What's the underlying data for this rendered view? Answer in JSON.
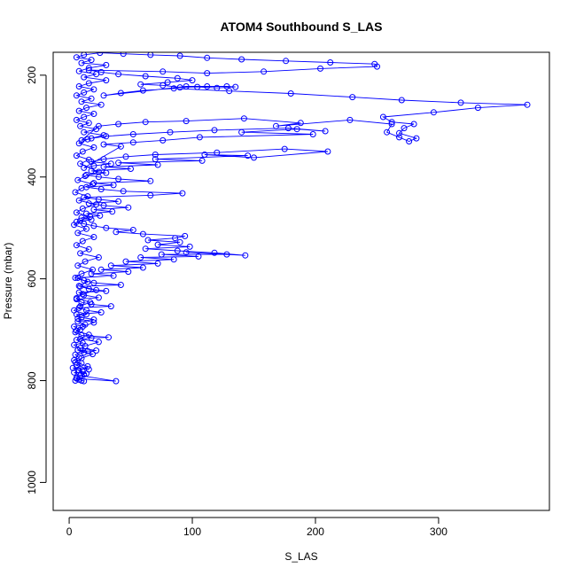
{
  "chart_data": {
    "type": "scatter",
    "title": "ATOM4 Southbound S_LAS",
    "xlabel": "S_LAS",
    "ylabel": "Pressure (mbar)",
    "xlim": [
      -13,
      390
    ],
    "ylim": [
      1055,
      155
    ],
    "y_reversed": true,
    "x_ticks": [
      0,
      100,
      200,
      300
    ],
    "y_ticks": [
      200,
      400,
      600,
      800,
      1000
    ],
    "grid": false,
    "legend": "none",
    "series": [
      {
        "marker": "open-circle",
        "line": "connected",
        "color": "#0000ff",
        "points": [
          [
            5,
            800
          ],
          [
            8,
            798
          ],
          [
            12,
            801
          ],
          [
            6,
            796
          ],
          [
            38,
            801
          ],
          [
            9,
            790
          ],
          [
            4,
            784
          ],
          [
            14,
            786
          ],
          [
            7,
            779
          ],
          [
            11,
            782
          ],
          [
            3,
            775
          ],
          [
            16,
            778
          ],
          [
            6,
            770
          ],
          [
            10,
            766
          ],
          [
            4,
            760
          ],
          [
            8,
            755
          ],
          [
            5,
            749
          ],
          [
            12,
            745
          ],
          [
            7,
            740
          ],
          [
            15,
            742
          ],
          [
            22,
            741
          ],
          [
            9,
            736
          ],
          [
            4,
            730
          ],
          [
            11,
            726
          ],
          [
            6,
            720
          ],
          [
            18,
            716
          ],
          [
            32,
            715
          ],
          [
            10,
            711
          ],
          [
            5,
            705
          ],
          [
            9,
            700
          ],
          [
            4,
            694
          ],
          [
            13,
            690
          ],
          [
            7,
            684
          ],
          [
            20,
            680
          ],
          [
            10,
            676
          ],
          [
            6,
            670
          ],
          [
            26,
            666
          ],
          [
            14,
            662
          ],
          [
            8,
            657
          ],
          [
            34,
            654
          ],
          [
            18,
            650
          ],
          [
            10,
            646
          ],
          [
            6,
            640
          ],
          [
            24,
            637
          ],
          [
            12,
            632
          ],
          [
            8,
            627
          ],
          [
            30,
            624
          ],
          [
            16,
            620
          ],
          [
            9,
            615
          ],
          [
            42,
            612
          ],
          [
            20,
            608
          ],
          [
            12,
            603
          ],
          [
            7,
            598
          ],
          [
            36,
            594
          ],
          [
            18,
            590
          ],
          [
            48,
            586
          ],
          [
            26,
            582
          ],
          [
            60,
            578
          ],
          [
            34,
            574
          ],
          [
            72,
            570
          ],
          [
            46,
            566
          ],
          [
            85,
            562
          ],
          [
            58,
            558
          ],
          [
            105,
            556
          ],
          [
            75,
            552
          ],
          [
            128,
            552
          ],
          [
            95,
            548
          ],
          [
            143,
            554
          ],
          [
            118,
            549
          ],
          [
            88,
            545
          ],
          [
            62,
            541
          ],
          [
            98,
            537
          ],
          [
            72,
            533
          ],
          [
            90,
            528
          ],
          [
            64,
            524
          ],
          [
            86,
            520
          ],
          [
            94,
            516
          ],
          [
            60,
            512
          ],
          [
            38,
            508
          ],
          [
            52,
            504
          ],
          [
            30,
            500
          ],
          [
            20,
            496
          ],
          [
            12,
            492
          ],
          [
            6,
            488
          ],
          [
            18,
            484
          ],
          [
            10,
            480
          ],
          [
            25,
            476
          ],
          [
            14,
            472
          ],
          [
            35,
            468
          ],
          [
            20,
            464
          ],
          [
            48,
            460
          ],
          [
            28,
            456
          ],
          [
            16,
            452
          ],
          [
            40,
            448
          ],
          [
            24,
            444
          ],
          [
            12,
            440
          ],
          [
            66,
            436
          ],
          [
            92,
            432
          ],
          [
            44,
            428
          ],
          [
            26,
            424
          ],
          [
            14,
            420
          ],
          [
            36,
            416
          ],
          [
            20,
            412
          ],
          [
            66,
            408
          ],
          [
            40,
            404
          ],
          [
            24,
            400
          ],
          [
            14,
            396
          ],
          [
            30,
            392
          ],
          [
            18,
            388
          ],
          [
            50,
            384
          ],
          [
            28,
            380
          ],
          [
            72,
            376
          ],
          [
            40,
            372
          ],
          [
            108,
            368
          ],
          [
            70,
            365
          ],
          [
            145,
            358
          ],
          [
            110,
            356
          ],
          [
            150,
            362
          ],
          [
            210,
            350
          ],
          [
            175,
            345
          ],
          [
            120,
            352
          ],
          [
            70,
            356
          ],
          [
            46,
            360
          ],
          [
            28,
            365
          ],
          [
            18,
            370
          ],
          [
            34,
            374
          ],
          [
            20,
            378
          ],
          [
            12,
            382
          ],
          [
            42,
            340
          ],
          [
            28,
            336
          ],
          [
            52,
            332
          ],
          [
            76,
            328
          ],
          [
            106,
            322
          ],
          [
            198,
            316
          ],
          [
            140,
            312
          ],
          [
            185,
            306
          ],
          [
            208,
            310
          ],
          [
            178,
            304
          ],
          [
            118,
            308
          ],
          [
            82,
            312
          ],
          [
            52,
            316
          ],
          [
            30,
            320
          ],
          [
            18,
            324
          ],
          [
            10,
            328
          ],
          [
            24,
            300
          ],
          [
            40,
            296
          ],
          [
            62,
            292
          ],
          [
            95,
            290
          ],
          [
            142,
            285
          ],
          [
            188,
            294
          ],
          [
            168,
            300
          ],
          [
            228,
            288
          ],
          [
            262,
            296
          ],
          [
            258,
            312
          ],
          [
            268,
            322
          ],
          [
            276,
            330
          ],
          [
            282,
            324
          ],
          [
            268,
            314
          ],
          [
            272,
            304
          ],
          [
            280,
            296
          ],
          [
            262,
            292
          ],
          [
            255,
            282
          ],
          [
            296,
            273
          ],
          [
            332,
            264
          ],
          [
            372,
            258
          ],
          [
            318,
            254
          ],
          [
            270,
            249
          ],
          [
            230,
            243
          ],
          [
            180,
            236
          ],
          [
            130,
            231
          ],
          [
            85,
            226
          ],
          [
            60,
            230
          ],
          [
            42,
            235
          ],
          [
            28,
            240
          ],
          [
            95,
            222
          ],
          [
            112,
            222
          ],
          [
            128,
            222
          ],
          [
            135,
            223
          ],
          [
            120,
            225
          ],
          [
            104,
            223
          ],
          [
            90,
            224
          ],
          [
            76,
            220
          ],
          [
            58,
            218
          ],
          [
            80,
            214
          ],
          [
            100,
            210
          ],
          [
            88,
            206
          ],
          [
            62,
            202
          ],
          [
            40,
            198
          ],
          [
            26,
            194
          ],
          [
            16,
            190
          ],
          [
            76,
            193
          ],
          [
            112,
            196
          ],
          [
            158,
            193
          ],
          [
            204,
            187
          ],
          [
            250,
            183
          ],
          [
            248,
            178
          ],
          [
            212,
            175
          ],
          [
            176,
            172
          ],
          [
            140,
            169
          ],
          [
            112,
            166
          ],
          [
            90,
            162
          ],
          [
            66,
            160
          ],
          [
            44,
            158
          ],
          [
            25,
            156
          ],
          [
            12,
            160
          ],
          [
            6,
            165
          ],
          [
            18,
            170
          ],
          [
            10,
            176
          ],
          [
            30,
            180
          ],
          [
            16,
            186
          ],
          [
            8,
            192
          ],
          [
            22,
            198
          ],
          [
            12,
            204
          ],
          [
            30,
            210
          ],
          [
            16,
            216
          ],
          [
            8,
            222
          ],
          [
            20,
            228
          ],
          [
            12,
            234
          ],
          [
            6,
            240
          ],
          [
            18,
            246
          ],
          [
            10,
            252
          ],
          [
            26,
            258
          ],
          [
            14,
            264
          ],
          [
            8,
            270
          ],
          [
            20,
            276
          ],
          [
            12,
            282
          ],
          [
            6,
            288
          ],
          [
            16,
            294
          ],
          [
            9,
            300
          ],
          [
            22,
            306
          ],
          [
            12,
            312
          ],
          [
            28,
            318
          ],
          [
            15,
            326
          ],
          [
            8,
            334
          ],
          [
            20,
            342
          ],
          [
            11,
            350
          ],
          [
            6,
            358
          ],
          [
            16,
            366
          ],
          [
            9,
            374
          ],
          [
            24,
            390
          ],
          [
            13,
            398
          ],
          [
            7,
            406
          ],
          [
            19,
            414
          ],
          [
            10,
            422
          ],
          [
            5,
            430
          ],
          [
            15,
            438
          ],
          [
            8,
            446
          ],
          [
            22,
            454
          ],
          [
            11,
            462
          ],
          [
            6,
            470
          ],
          [
            17,
            478
          ],
          [
            9,
            486
          ],
          [
            4,
            494
          ],
          [
            14,
            502
          ],
          [
            7,
            510
          ],
          [
            20,
            518
          ],
          [
            11,
            526
          ],
          [
            6,
            534
          ],
          [
            16,
            542
          ],
          [
            9,
            550
          ],
          [
            24,
            558
          ],
          [
            13,
            566
          ],
          [
            7,
            574
          ],
          [
            19,
            582
          ],
          [
            10,
            590
          ],
          [
            5,
            598
          ],
          [
            15,
            606
          ],
          [
            8,
            614
          ],
          [
            22,
            622
          ],
          [
            11,
            630
          ],
          [
            6,
            638
          ],
          [
            17,
            646
          ],
          [
            9,
            654
          ],
          [
            4,
            662
          ],
          [
            14,
            670
          ],
          [
            7,
            678
          ],
          [
            20,
            686
          ],
          [
            11,
            694
          ],
          [
            6,
            702
          ],
          [
            16,
            710
          ],
          [
            9,
            718
          ],
          [
            24,
            724
          ],
          [
            13,
            732
          ],
          [
            7,
            740
          ],
          [
            19,
            748
          ],
          [
            10,
            756
          ],
          [
            5,
            764
          ],
          [
            15,
            772
          ],
          [
            8,
            780
          ],
          [
            12,
            788
          ],
          [
            6,
            794
          ],
          [
            10,
            800
          ]
        ]
      }
    ]
  }
}
